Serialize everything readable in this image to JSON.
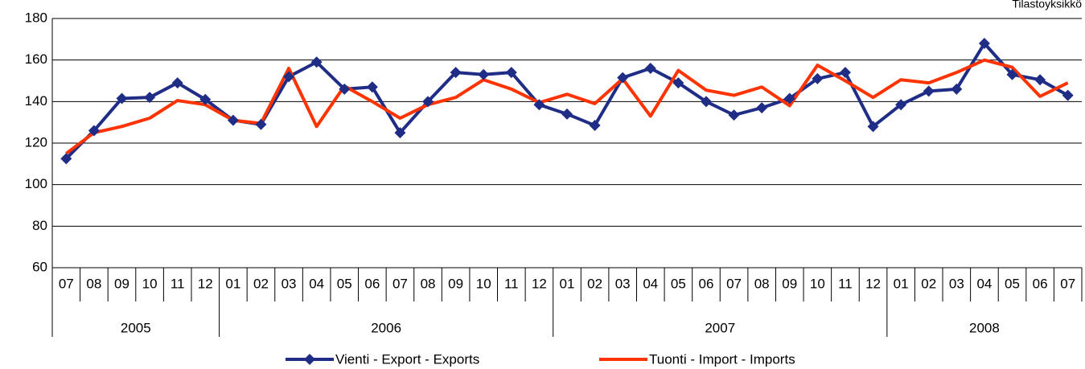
{
  "chart_data": {
    "type": "line",
    "annotation": "Tilastoyksikkö",
    "categories": [
      "07",
      "08",
      "09",
      "10",
      "11",
      "12",
      "01",
      "02",
      "03",
      "04",
      "05",
      "06",
      "07",
      "08",
      "09",
      "10",
      "11",
      "12",
      "01",
      "02",
      "03",
      "04",
      "05",
      "06",
      "07",
      "08",
      "09",
      "10",
      "11",
      "12",
      "01",
      "02",
      "03",
      "04",
      "05",
      "06",
      "07"
    ],
    "year_groups": [
      {
        "label": "2005",
        "count": 6
      },
      {
        "label": "2006",
        "count": 12
      },
      {
        "label": "2007",
        "count": 12
      },
      {
        "label": "2008",
        "count": 7
      }
    ],
    "series": [
      {
        "name": "Vienti - Export - Exports",
        "color": "#1f2d86",
        "marker": "diamond",
        "values": [
          112.5,
          126,
          141.5,
          142,
          149,
          141,
          131,
          129,
          152,
          159,
          146,
          147,
          125,
          140,
          154,
          153,
          154,
          138.5,
          134,
          128.5,
          151.5,
          156,
          149,
          140,
          133.5,
          137,
          141.5,
          151,
          154,
          128,
          138.5,
          145,
          146,
          168,
          153,
          150.5,
          143
        ]
      },
      {
        "name": "Tuonti - Import - Imports",
        "color": "#ff3300",
        "values": [
          115,
          125,
          128,
          132,
          140.5,
          138.5,
          131,
          129.5,
          156,
          128,
          147.5,
          140,
          132,
          138.5,
          142,
          150.5,
          146,
          139.5,
          143.5,
          139,
          151,
          133,
          155,
          145.5,
          143,
          147,
          138,
          157.5,
          150,
          142,
          150.5,
          149,
          154,
          160,
          156.5,
          142.5,
          149
        ]
      }
    ],
    "ylim": [
      60,
      180
    ],
    "yticks": [
      60,
      80,
      100,
      120,
      140,
      160,
      180
    ],
    "grid": true,
    "legend": "bottom"
  }
}
